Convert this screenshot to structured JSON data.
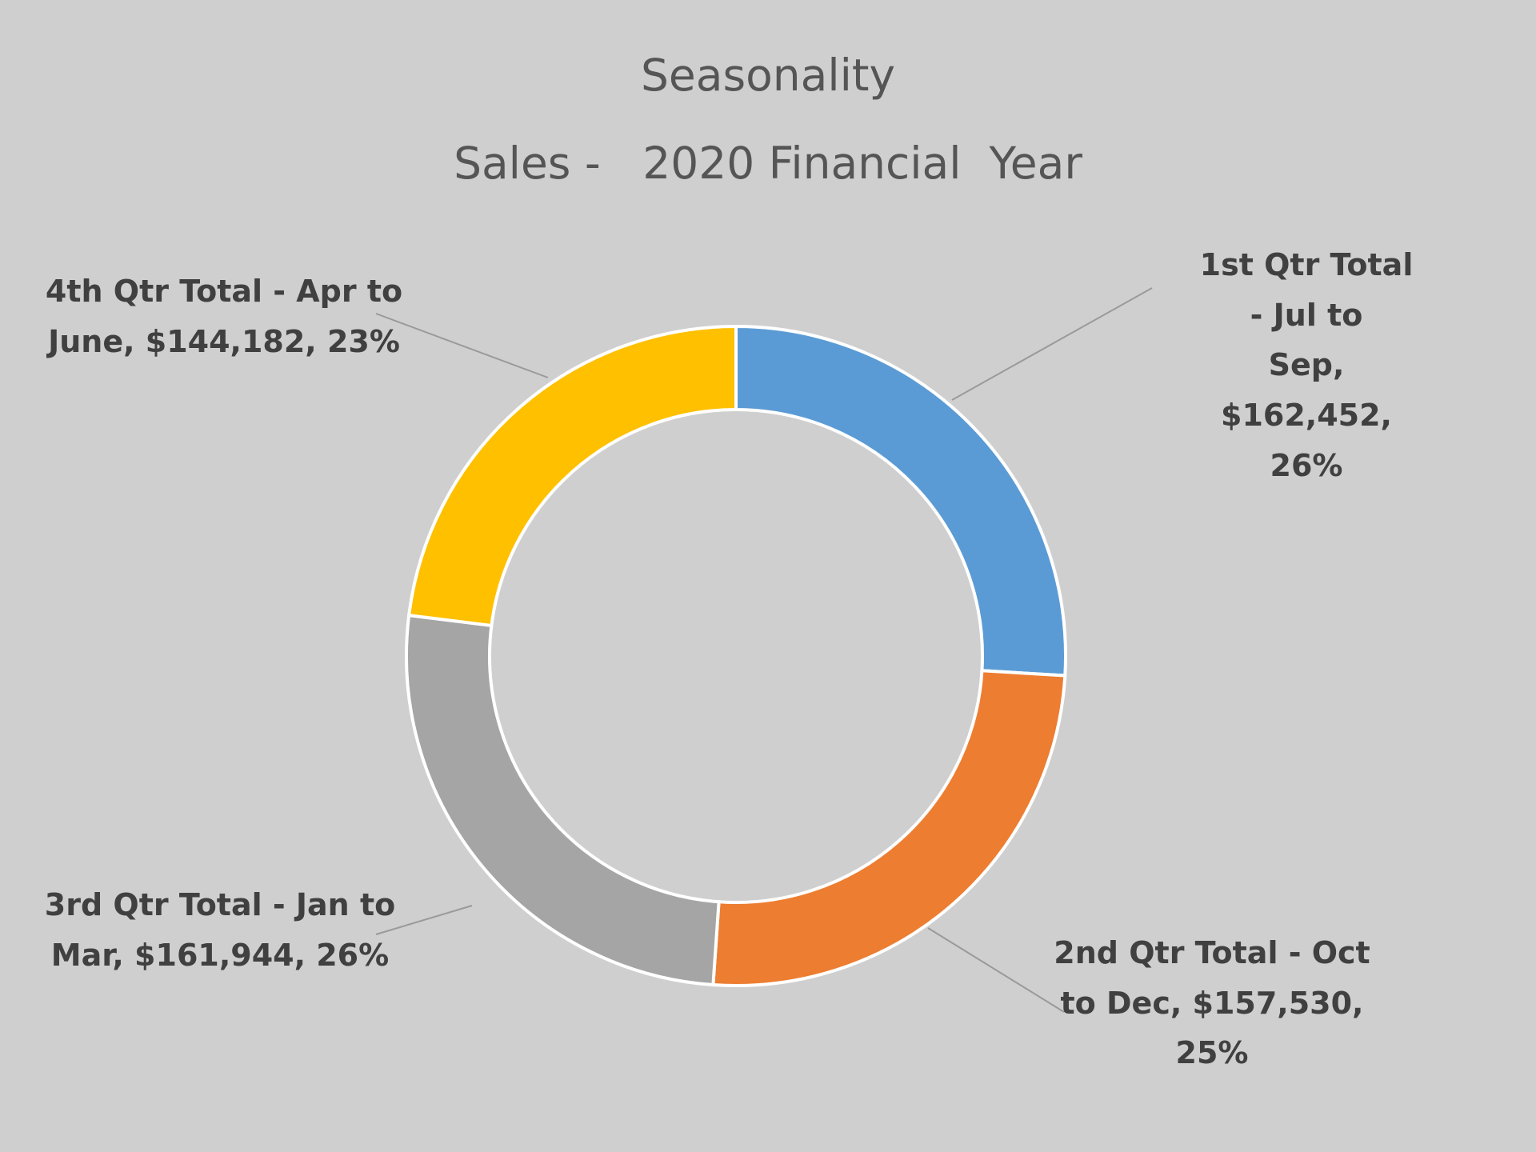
{
  "chart_data": {
    "type": "donut",
    "title": "Seasonality",
    "subtitle": "Sales -   2020 Financial  Year",
    "start_angle_deg": 0,
    "direction": "clockwise",
    "slices": [
      {
        "label": "1st Qtr Total - Jul to Sep",
        "value": 162452,
        "percent": 26,
        "color": "#5b9bd5",
        "data_label": "1st Qtr Total - Jul to\nSep, $162,452, 26%"
      },
      {
        "label": "2nd Qtr Total - Oct to Dec",
        "value": 157530,
        "percent": 25,
        "color": "#ed7d31",
        "data_label": "2nd Qtr Total - Oct\nto Dec, $157,530,\n25%"
      },
      {
        "label": "3rd Qtr Total - Jan to Mar",
        "value": 161944,
        "percent": 26,
        "color": "#a5a5a5",
        "data_label": "3rd Qtr Total - Jan to\nMar, $161,944, 26%"
      },
      {
        "label": "4th Qtr Total - Apr to June",
        "value": 144182,
        "percent": 23,
        "color": "#ffc000",
        "data_label": "4th Qtr Total - Apr to\nJune, $144,182, 23%"
      }
    ],
    "legend": "none",
    "background_color": "#d0cfcf"
  }
}
